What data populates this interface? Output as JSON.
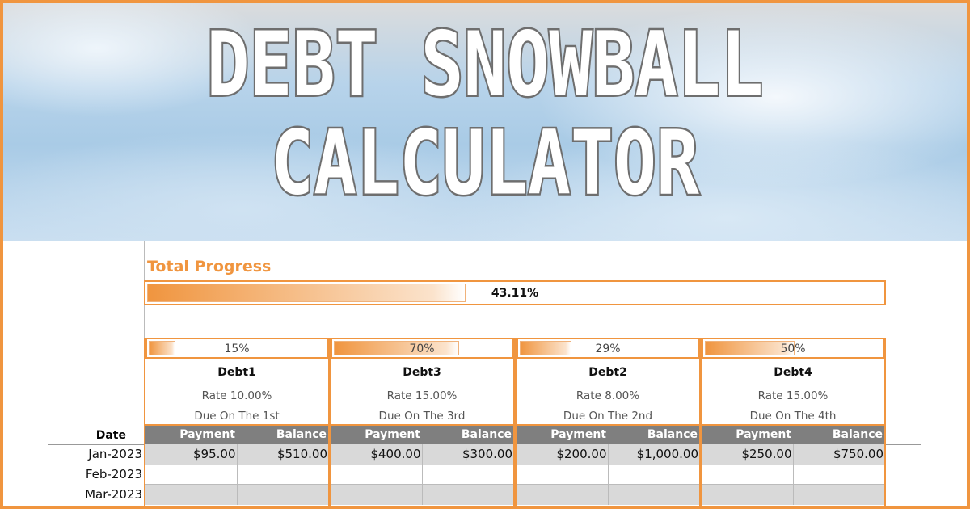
{
  "hero": {
    "line1": "DEBT SNOWBALL",
    "line2": "CALCULATOR"
  },
  "total": {
    "label": "Total Progress",
    "percent_text": "43.11%",
    "fraction": 0.4311
  },
  "accent": "#f0953f",
  "table": {
    "date_header": "Date",
    "payment_header": "Payment",
    "balance_header": "Balance",
    "dates": [
      "Jan-2023",
      "Feb-2023",
      "Mar-2023"
    ]
  },
  "debts": [
    {
      "name": "Debt1",
      "percent_text": "15%",
      "fraction": 0.15,
      "rate_label": "Rate",
      "rate": "10.00%",
      "due": "Due On The 1st",
      "payment": "$95.00",
      "balance": "$510.00"
    },
    {
      "name": "Debt3",
      "percent_text": "70%",
      "fraction": 0.7,
      "rate_label": "Rate",
      "rate": "15.00%",
      "due": "Due On The 3rd",
      "payment": "$400.00",
      "balance": "$300.00"
    },
    {
      "name": "Debt2",
      "percent_text": "29%",
      "fraction": 0.29,
      "rate_label": "Rate",
      "rate": "8.00%",
      "due": "Due On The 2nd",
      "payment": "$200.00",
      "balance": "$1,000.00"
    },
    {
      "name": "Debt4",
      "percent_text": "50%",
      "fraction": 0.5,
      "rate_label": "Rate",
      "rate": "15.00%",
      "due": "Due On The 4th",
      "payment": "$250.00",
      "balance": "$750.00"
    }
  ]
}
